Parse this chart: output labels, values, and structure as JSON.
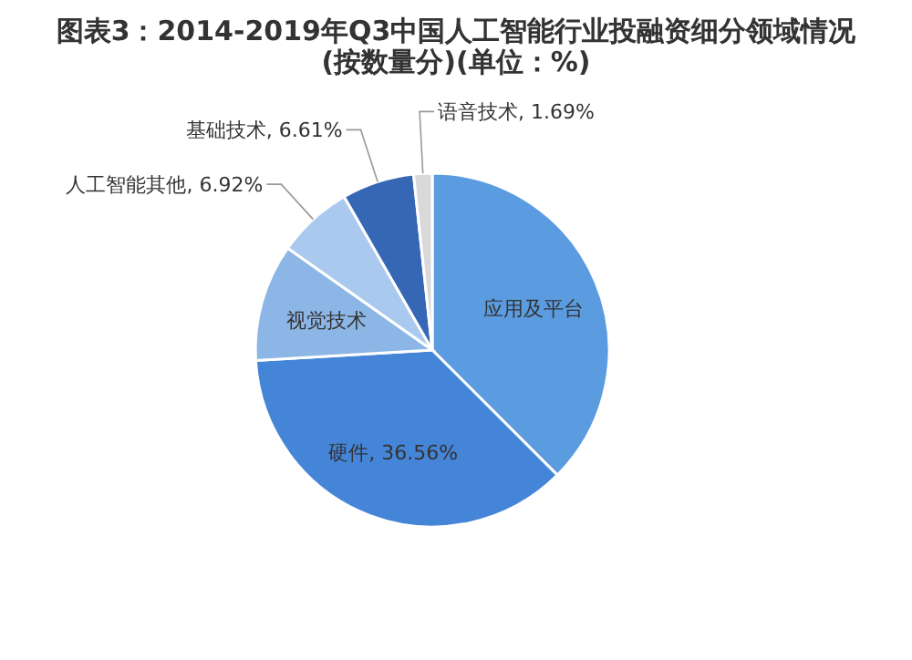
{
  "chart_data": {
    "type": "pie",
    "title": "图表3：2014-2019年Q3中国人工智能行业投融资细分领域情况(按数量分)(单位：%)",
    "categories": [
      "应用及平台",
      "硬件",
      "视觉技术",
      "人工智能其他",
      "基础技术",
      "语音技术"
    ],
    "values": [
      37.5,
      36.56,
      10.72,
      6.92,
      6.61,
      1.69
    ],
    "value_labels": [
      null,
      "36.56%",
      null,
      "6.92%",
      "6.61%",
      "1.69%"
    ],
    "colors": [
      "#5b9be0",
      "#4585d8",
      "#8cb6e6",
      "#a9caee",
      "#3567b5",
      "#d9d9d9"
    ]
  }
}
